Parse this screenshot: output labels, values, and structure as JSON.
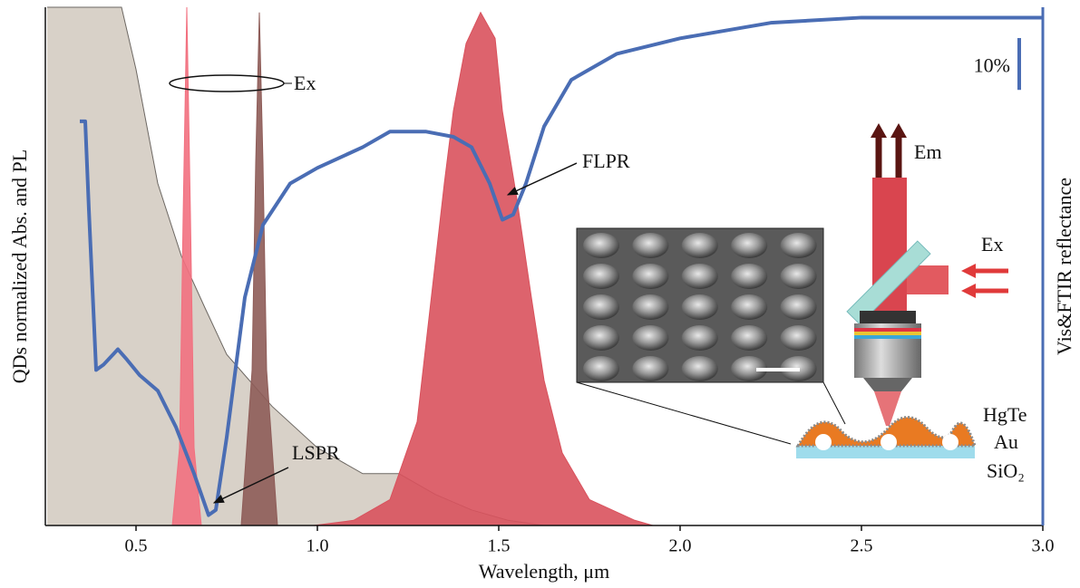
{
  "chart_data": {
    "type": "line",
    "x_label": "Wavelength, μm",
    "y_label": "QDs normalized Abs. and PL",
    "y2_label": "Vis&FTIR reflectance",
    "xlim": [
      0.25,
      3.0
    ],
    "ylim": [
      0,
      1
    ],
    "y2lim": [
      0,
      100
    ],
    "xticks": [
      0.5,
      {
        "value": 1,
        "label": "1.0"
      },
      1.5,
      {
        "value": 2,
        "label": "2.0"
      },
      2.5,
      {
        "value": 3,
        "label": "3.0"
      }
    ],
    "scale_bar": {
      "value": 10,
      "label": "10%",
      "axis": "y2"
    },
    "series": [
      {
        "kind": "area",
        "color": "#d8d1c8",
        "x": [
          0.255,
          0.46,
          0.5,
          0.56,
          0.625,
          0.69,
          0.75,
          0.875,
          1.0,
          1.125,
          1.225,
          1.325,
          1.425,
          1.525,
          1.625
        ],
        "values": [
          1.0,
          1.0,
          0.88,
          0.66,
          0.52,
          0.42,
          0.33,
          0.23,
          0.15,
          0.1,
          0.1,
          0.06,
          0.03,
          0.01,
          0
        ]
      },
      {
        "kind": "area",
        "color": "#f2707f",
        "x": [
          0.6,
          0.62,
          0.63,
          0.64,
          0.65,
          0.66,
          0.68
        ],
        "values": [
          0,
          0.15,
          0.6,
          1.0,
          0.6,
          0.15,
          0
        ]
      },
      {
        "kind": "area",
        "color": "#8e5c58",
        "x": [
          0.79,
          0.82,
          0.83,
          0.84,
          0.85,
          0.86,
          0.89
        ],
        "values": [
          0,
          0.3,
          0.7,
          0.99,
          0.7,
          0.3,
          0
        ]
      },
      {
        "kind": "area",
        "color": "#d9525d",
        "x": [
          0.99,
          1.1,
          1.2,
          1.275,
          1.35,
          1.375,
          1.41,
          1.45,
          1.49,
          1.51,
          1.55,
          1.59,
          1.625,
          1.675,
          1.75,
          1.875,
          1.925
        ],
        "values": [
          0,
          0.01,
          0.05,
          0.2,
          0.66,
          0.8,
          0.93,
          0.99,
          0.94,
          0.8,
          0.63,
          0.44,
          0.28,
          0.14,
          0.05,
          0.01,
          0
        ]
      },
      {
        "kind": "line",
        "axis": "y2",
        "color": "#4a6db4",
        "x": [
          0.345,
          0.36,
          0.37,
          0.39,
          0.41,
          0.45,
          0.475,
          0.51,
          0.56,
          0.61,
          0.66,
          0.7,
          0.72,
          0.75,
          0.8,
          0.85,
          0.925,
          1.0,
          1.125,
          1.2,
          1.3,
          1.375,
          1.425,
          1.475,
          1.51,
          1.54,
          1.575,
          1.625,
          1.7,
          1.825,
          2.0,
          2.25,
          2.5,
          2.75,
          3.0
        ],
        "values": [
          78,
          78,
          61,
          30,
          31,
          34,
          32,
          29,
          26,
          19,
          10,
          2,
          3,
          17,
          44,
          58,
          66,
          69,
          73,
          76,
          76,
          75,
          73,
          66,
          59,
          60,
          66,
          77,
          86,
          91,
          94,
          97,
          98,
          98,
          98
        ]
      }
    ],
    "annotations": [
      "Ex",
      "LSPR",
      "FLPR"
    ],
    "inset_labels": [
      "Em",
      "Ex",
      "HgTe",
      "Au",
      "SiO₂"
    ]
  }
}
